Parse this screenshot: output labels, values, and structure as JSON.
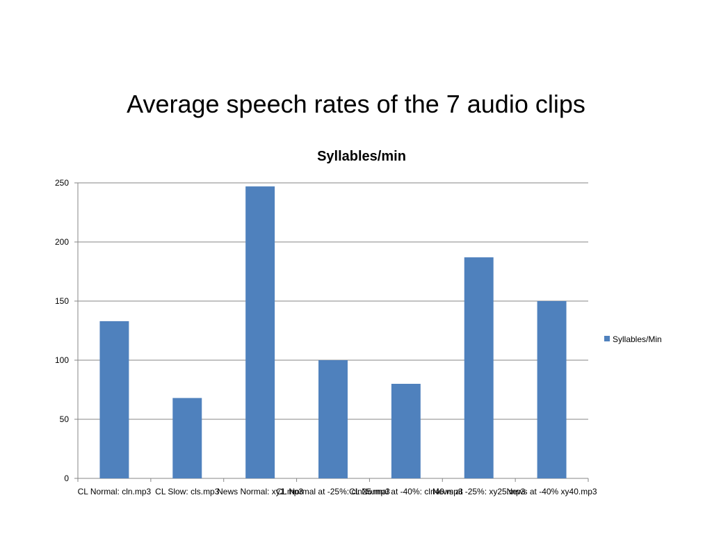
{
  "slide": {
    "title": "Average speech rates of the 7 audio clips"
  },
  "colors": {
    "bar": "#4F81BD",
    "gridline": "#868686",
    "axis": "#868686",
    "background": "#ffffff"
  },
  "chart_data": {
    "type": "bar",
    "title": "Syllables/min",
    "xlabel": "",
    "ylabel": "",
    "categories": [
      "CL Normal: cln.mp3",
      "CL Slow: cls.mp3",
      "News Normal: xy1.mp3",
      "CL Normal at -25%: cln25.mp3",
      "CL Normal at -40%: cln40.mp3",
      "News at -25%: xy25.mp3",
      "News at -40% xy40.mp3"
    ],
    "series": [
      {
        "name": "Syllables/Min",
        "values": [
          133,
          68,
          247,
          100,
          80,
          187,
          150
        ]
      }
    ],
    "ylim": [
      0,
      250
    ],
    "yticks": [
      0,
      50,
      100,
      150,
      200,
      250
    ],
    "grid": true,
    "legend_position": "right"
  }
}
